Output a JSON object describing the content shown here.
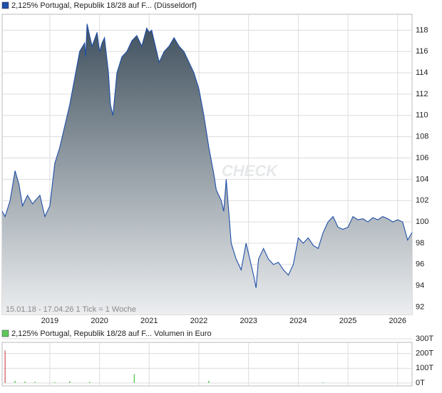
{
  "chart_data": [
    {
      "type": "area",
      "title": "2,125% Portugal, Republik 18/28 auf F... (Düsseldorf)",
      "note": "15.01.18 - 17.04.26   1 Tick = 1 Woche",
      "watermark": "CHECK",
      "x": [
        2018.04,
        2018.1,
        2018.2,
        2018.3,
        2018.38,
        2018.45,
        2018.55,
        2018.65,
        2018.8,
        2018.9,
        2019.0,
        2019.05,
        2019.1,
        2019.2,
        2019.3,
        2019.4,
        2019.5,
        2019.6,
        2019.7,
        2019.72,
        2019.75,
        2019.8,
        2019.85,
        2019.95,
        2020.0,
        2020.05,
        2020.1,
        2020.18,
        2020.22,
        2020.27,
        2020.35,
        2020.45,
        2020.55,
        2020.65,
        2020.75,
        2020.85,
        2020.95,
        2021.0,
        2021.05,
        2021.1,
        2021.2,
        2021.3,
        2021.4,
        2021.5,
        2021.6,
        2021.7,
        2021.8,
        2021.9,
        2022.0,
        2022.1,
        2022.2,
        2022.3,
        2022.35,
        2022.45,
        2022.5,
        2022.55,
        2022.6,
        2022.65,
        2022.75,
        2022.85,
        2022.95,
        2023.0,
        2023.1,
        2023.15,
        2023.2,
        2023.3,
        2023.4,
        2023.5,
        2023.6,
        2023.7,
        2023.8,
        2023.9,
        2024.0,
        2024.1,
        2024.2,
        2024.3,
        2024.4,
        2024.5,
        2024.6,
        2024.7,
        2024.8,
        2024.9,
        2025.0,
        2025.1,
        2025.2,
        2025.3,
        2025.4,
        2025.5,
        2025.6,
        2025.7,
        2025.8,
        2025.9,
        2026.0,
        2026.1,
        2026.2,
        2026.29
      ],
      "series": [
        {
          "name": "2,125% Portugal, Republik 18/28 auf F... (Düsseldorf)",
          "color": "#1f4fa8",
          "values": [
            101.0,
            100.5,
            102,
            104.8,
            103.5,
            101.5,
            102.5,
            101.7,
            102.5,
            100.5,
            101.5,
            103.5,
            105.5,
            107,
            109,
            111,
            113.5,
            116,
            116.8,
            115.5,
            118.6,
            117.5,
            116.5,
            117.8,
            116,
            116.8,
            117.3,
            114,
            111,
            110,
            114,
            115.5,
            116,
            117,
            117.5,
            116.5,
            118.2,
            117.8,
            118,
            117,
            115,
            116,
            116.5,
            117.3,
            116.5,
            116,
            115,
            114,
            112.5,
            110,
            107,
            104.5,
            103,
            102,
            101,
            104,
            101,
            98,
            96.5,
            95.5,
            98,
            97,
            95,
            93.8,
            96.5,
            97.5,
            96.5,
            96,
            96.2,
            95.5,
            95,
            96,
            98.5,
            98,
            98.5,
            97.8,
            97.5,
            99,
            100,
            100.5,
            99.5,
            99.3,
            99.5,
            100.5,
            100.2,
            100.3,
            100,
            100.4,
            100.2,
            100.5,
            100.3,
            100,
            100.2,
            100,
            98.3,
            99
          ]
        }
      ],
      "xlim": [
        2018.04,
        2026.29
      ],
      "xticks": [
        2019,
        2020,
        2021,
        2022,
        2023,
        2024,
        2025,
        2026
      ],
      "ylim": [
        91.3,
        119.5
      ],
      "yticks": [
        92,
        94,
        96,
        98,
        100,
        102,
        104,
        106,
        108,
        110,
        112,
        114,
        116,
        118
      ],
      "grid": true
    },
    {
      "type": "bar",
      "title": "2,125% Portugal, Republik 18/28 auf F... Volumen in Euro",
      "x": [
        2018.1,
        2018.3,
        2018.5,
        2018.7,
        2019.1,
        2019.4,
        2019.8,
        2020.7,
        2022.2,
        2024.5
      ],
      "series": [
        {
          "name": "2,125% Portugal, Republik 18/28 auf F... Volumen in Euro",
          "color": "#5cc85c",
          "values": [
            220000,
            15000,
            10000,
            8000,
            6000,
            12000,
            8000,
            60000,
            15000,
            5000
          ],
          "colors": [
            "#d46a6a",
            "#5cc85c",
            "#5cc85c",
            "#5cc85c",
            "#5cc85c",
            "#5cc85c",
            "#5cc85c",
            "#5cc85c",
            "#5cc85c",
            "#5cc85c"
          ]
        }
      ],
      "xlim": [
        2018.04,
        2026.29
      ],
      "ylim": [
        0,
        300000
      ],
      "yticks": [
        {
          "value": 0,
          "label": "0T"
        },
        {
          "value": 100000,
          "label": "100T"
        },
        {
          "value": 200000,
          "label": "200T"
        },
        {
          "value": 300000,
          "label": "300T"
        }
      ],
      "grid": true
    }
  ]
}
